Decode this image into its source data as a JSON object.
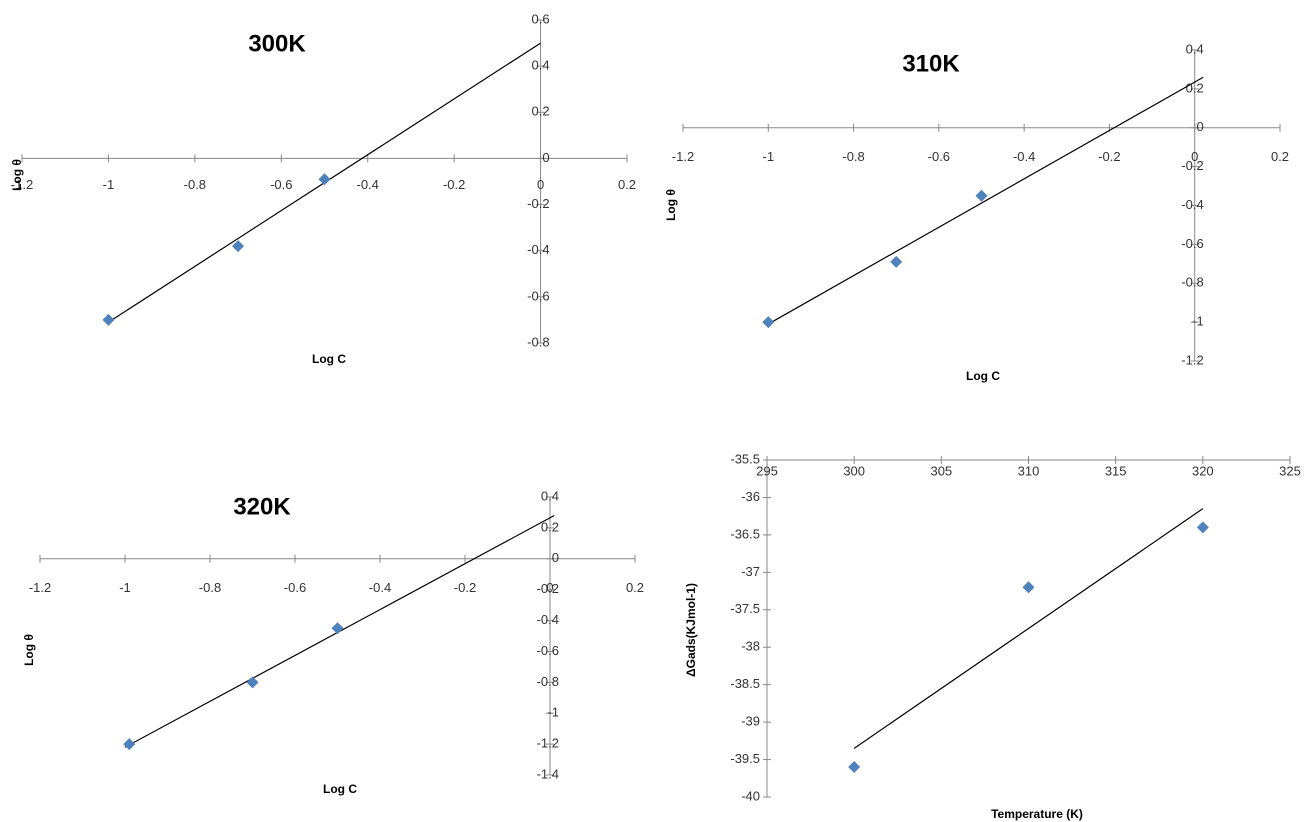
{
  "chart_data": [
    {
      "type": "scatter",
      "title": "300K",
      "x_label": "Log C",
      "y_label": "Log θ",
      "series": [
        {
          "color": "#4f81bd",
          "x": [
            -1,
            -0.7,
            -0.5
          ],
          "values": [
            -0.7,
            -0.38,
            -0.09
          ]
        }
      ],
      "trendline": {
        "color": "#000000",
        "x": [
          -1,
          0
        ],
        "values": [
          -0.71,
          0.5
        ]
      },
      "xlim": [
        -1.2,
        0.2
      ],
      "xticks": [
        -1.2,
        -1,
        -0.8,
        -0.6,
        -0.4,
        -0.2,
        0,
        0.2
      ],
      "ylim": [
        -0.8,
        0.6
      ],
      "yticks": [
        -0.8,
        -0.6,
        -0.4,
        -0.2,
        0,
        0.2,
        0.4,
        0.6
      ]
    },
    {
      "type": "scatter",
      "title": "310K",
      "x_label": "Log C",
      "y_label": "Log θ",
      "series": [
        {
          "color": "#4f81bd",
          "x": [
            -1,
            -0.7,
            -0.5
          ],
          "values": [
            -1.0,
            -0.69,
            -0.35
          ]
        }
      ],
      "trendline": {
        "color": "#000000",
        "x": [
          -1,
          0.02
        ],
        "values": [
          -1.01,
          0.26
        ]
      },
      "xlim": [
        -1.2,
        0.2
      ],
      "xticks": [
        -1.2,
        -1,
        -0.8,
        -0.6,
        -0.4,
        -0.2,
        0,
        0.2
      ],
      "ylim": [
        -1.2,
        0.4
      ],
      "yticks": [
        -1.2,
        -1,
        -0.8,
        -0.6,
        -0.4,
        -0.2,
        0,
        0.2,
        0.4
      ]
    },
    {
      "type": "scatter",
      "title": "320K",
      "x_label": "Log C",
      "y_label": "Log θ",
      "series": [
        {
          "color": "#4f81bd",
          "x": [
            -0.99,
            -0.7,
            -0.5
          ],
          "values": [
            -1.2,
            -0.8,
            -0.45
          ]
        }
      ],
      "trendline": {
        "color": "#000000",
        "x": [
          -1,
          0.01
        ],
        "values": [
          -1.22,
          0.28
        ]
      },
      "xlim": [
        -1.2,
        0.2
      ],
      "xticks": [
        -1.2,
        -1,
        -0.8,
        -0.6,
        -0.4,
        -0.2,
        0,
        0.2
      ],
      "ylim": [
        -1.4,
        0.4
      ],
      "yticks": [
        -1.4,
        -1.2,
        -1,
        -0.8,
        -0.6,
        -0.4,
        -0.2,
        0,
        0.2,
        0.4
      ]
    },
    {
      "type": "scatter",
      "x_label": "Temperature (K)",
      "y_label": "ΔGads(KJmol-1)",
      "series": [
        {
          "color": "#4f81bd",
          "x": [
            300,
            310,
            320
          ],
          "values": [
            -39.6,
            -37.2,
            -36.4
          ]
        }
      ],
      "trendline": {
        "color": "#000000",
        "x": [
          300,
          320
        ],
        "values": [
          -39.35,
          -36.15
        ]
      },
      "xlim": [
        295,
        325
      ],
      "xticks": [
        295,
        300,
        305,
        310,
        315,
        320,
        325
      ],
      "ylim": [
        -40,
        -35.5
      ],
      "yticks": [
        -40,
        -39.5,
        -39,
        -38.5,
        -38,
        -37.5,
        -37,
        -36.5,
        -36,
        -35.5
      ]
    }
  ]
}
